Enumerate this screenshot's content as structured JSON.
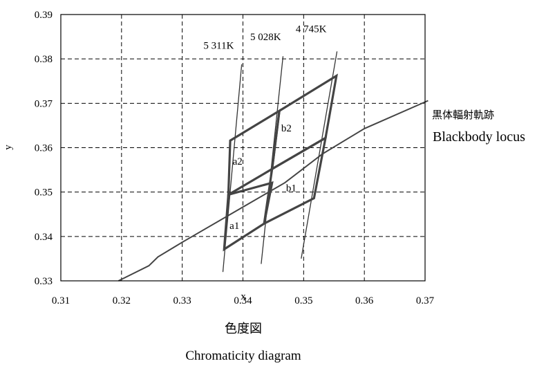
{
  "chart_data": {
    "type": "line",
    "xlabel": "x",
    "ylabel": "y",
    "xlim": [
      0.31,
      0.37
    ],
    "ylim": [
      0.33,
      0.39
    ],
    "x_ticks": [
      "0.31",
      "0.32",
      "0.33",
      "0.34",
      "0.35",
      "0.36",
      "0.37"
    ],
    "y_ticks": [
      "0.33",
      "0.34",
      "0.35",
      "0.36",
      "0.37",
      "0.38",
      "0.39"
    ],
    "grid": true,
    "series": [
      {
        "name": "黒体輻射軌跡 Blackbody locus",
        "points": [
          [
            0.3195,
            0.33
          ],
          [
            0.3245,
            0.3334
          ],
          [
            0.326,
            0.3354
          ],
          [
            0.33,
            0.3387
          ],
          [
            0.3402,
            0.3468
          ],
          [
            0.3469,
            0.3521
          ],
          [
            0.3531,
            0.3586
          ],
          [
            0.36,
            0.3643
          ],
          [
            0.3705,
            0.3706
          ]
        ]
      },
      {
        "name": "5 311K",
        "points": [
          [
            0.3367,
            0.332
          ],
          [
            0.3398,
            0.3788
          ]
        ]
      },
      {
        "name": "5 028K",
        "points": [
          [
            0.343,
            0.3338
          ],
          [
            0.3466,
            0.3806
          ]
        ]
      },
      {
        "name": "4 745K",
        "points": [
          [
            0.3496,
            0.335
          ],
          [
            0.3555,
            0.3817
          ]
        ]
      }
    ],
    "quadrangles": [
      {
        "name": "a1",
        "points": [
          [
            0.3369,
            0.3371
          ],
          [
            0.3435,
            0.3429
          ],
          [
            0.3448,
            0.3521
          ],
          [
            0.3376,
            0.3494
          ]
        ]
      },
      {
        "name": "a2",
        "points": [
          [
            0.3376,
            0.3494
          ],
          [
            0.3448,
            0.3552
          ],
          [
            0.346,
            0.3683
          ],
          [
            0.3379,
            0.3616
          ]
        ]
      },
      {
        "name": "b1",
        "points": [
          [
            0.3435,
            0.3429
          ],
          [
            0.3517,
            0.3486
          ],
          [
            0.3536,
            0.3622
          ],
          [
            0.3448,
            0.3552
          ]
        ]
      },
      {
        "name": "b2",
        "points": [
          [
            0.3448,
            0.3552
          ],
          [
            0.3536,
            0.3622
          ],
          [
            0.3554,
            0.3762
          ],
          [
            0.346,
            0.3683
          ]
        ]
      }
    ],
    "annotations": [
      {
        "text": "5 311K",
        "at": [
          0.3335,
          0.3823
        ]
      },
      {
        "text": "5 028K",
        "at": [
          0.3412,
          0.3842
        ]
      },
      {
        "text": "4 745K",
        "at": [
          0.3487,
          0.386
        ]
      },
      {
        "text": "a1",
        "at": [
          0.3378,
          0.3417
        ]
      },
      {
        "text": "a2",
        "at": [
          0.3383,
          0.3562
        ]
      },
      {
        "text": "b1",
        "at": [
          0.3471,
          0.3502
        ]
      },
      {
        "text": "b2",
        "at": [
          0.3463,
          0.3637
        ]
      }
    ],
    "legend_text": {
      "line1": "黒体輻射軌跡",
      "line2": "Blackbody locus"
    },
    "caption": {
      "line1": "色度図",
      "line2": "Chromaticity diagram"
    }
  }
}
